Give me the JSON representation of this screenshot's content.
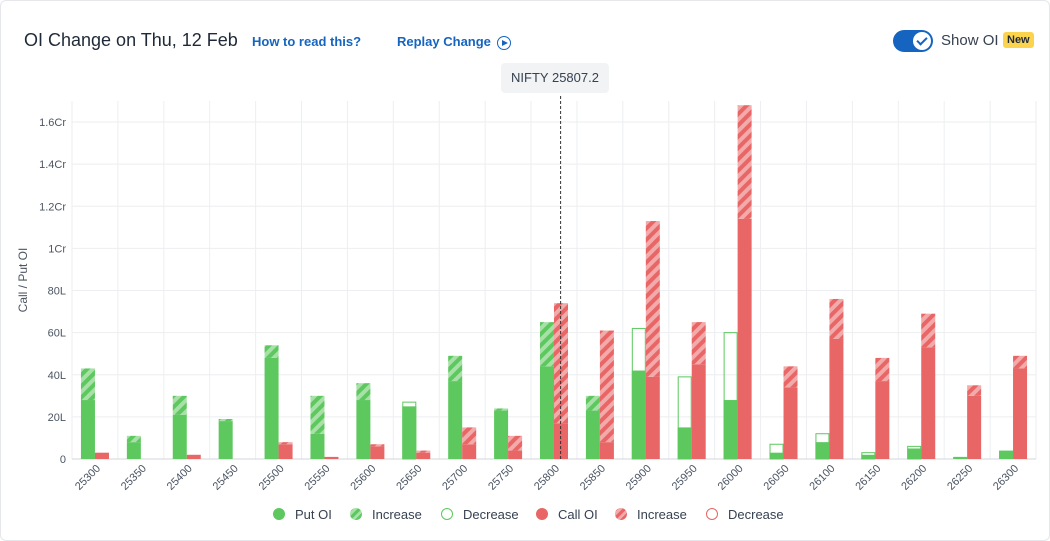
{
  "header": {
    "title": "OI Change on Thu, 12 Feb",
    "how_to_read": "How to read this?",
    "replay": "Replay Change",
    "show_oi_label": "Show OI",
    "new_badge": "New"
  },
  "spot_label": "NIFTY 25807.2",
  "colors": {
    "put": "#5cc85e",
    "call": "#e86666",
    "put_light": "#a8e0a8",
    "call_light": "#f2aaaa",
    "spot_line": "#333333"
  },
  "legend": [
    {
      "label": "Put OI",
      "kind": "put-solid"
    },
    {
      "label": "Increase",
      "kind": "put-hatch"
    },
    {
      "label": "Decrease",
      "kind": "put-outline"
    },
    {
      "label": "Call OI",
      "kind": "call-solid"
    },
    {
      "label": "Increase",
      "kind": "call-hatch"
    },
    {
      "label": "Decrease",
      "kind": "call-outline"
    }
  ],
  "chart_data": {
    "type": "bar",
    "ylabel": "Call / Put OI",
    "ylim": [
      0,
      1.7
    ],
    "y_unit": "Cr",
    "yticks": [
      {
        "value": 0,
        "label": "0"
      },
      {
        "value": 0.2,
        "label": "20L"
      },
      {
        "value": 0.4,
        "label": "40L"
      },
      {
        "value": 0.6,
        "label": "60L"
      },
      {
        "value": 0.8,
        "label": "80L"
      },
      {
        "value": 1.0,
        "label": "1Cr"
      },
      {
        "value": 1.2,
        "label": "1.2Cr"
      },
      {
        "value": 1.4,
        "label": "1.4Cr"
      },
      {
        "value": 1.6,
        "label": "1.6Cr"
      }
    ],
    "spot": 25807.2,
    "categories": [
      "25300",
      "25350",
      "25400",
      "25450",
      "25500",
      "25550",
      "25600",
      "25650",
      "25700",
      "25750",
      "25800",
      "25850",
      "25900",
      "25950",
      "26000",
      "26050",
      "26100",
      "26150",
      "26200",
      "26250",
      "26300"
    ],
    "series": [
      {
        "name": "Put OI",
        "values": [
          0.28,
          0.08,
          0.21,
          0.18,
          0.48,
          0.12,
          0.28,
          0.25,
          0.37,
          0.23,
          0.44,
          0.23,
          0.42,
          0.15,
          0.28,
          0.03,
          0.08,
          0.02,
          0.05,
          0.01,
          0.04
        ]
      },
      {
        "name": "Put Increase",
        "values": [
          0.15,
          0.03,
          0.09,
          0.01,
          0.06,
          0.18,
          0.08,
          0,
          0.12,
          0.01,
          0.21,
          0.07,
          0,
          0,
          0,
          0,
          0,
          0,
          0,
          0,
          0
        ]
      },
      {
        "name": "Put Decrease",
        "values": [
          0,
          0,
          0,
          0,
          0,
          0,
          0,
          0.02,
          0,
          0,
          0,
          0,
          0.2,
          0.24,
          0.32,
          0.04,
          0.04,
          0.01,
          0.01,
          0,
          0
        ]
      },
      {
        "name": "Call OI",
        "values": [
          0.03,
          0,
          0.02,
          0,
          0.07,
          0.01,
          0.06,
          0.03,
          0.07,
          0.04,
          0.17,
          0.08,
          0.39,
          0.45,
          1.14,
          0.34,
          0.57,
          0.37,
          0.53,
          0.3,
          0.43
        ]
      },
      {
        "name": "Call Increase",
        "values": [
          0,
          0,
          0,
          0,
          0.01,
          0,
          0.01,
          0.01,
          0.08,
          0.07,
          0.57,
          0.53,
          0.74,
          0.2,
          0.54,
          0.1,
          0.19,
          0.11,
          0.16,
          0.05,
          0.06
        ]
      },
      {
        "name": "Call Decrease",
        "values": [
          0,
          0,
          0,
          0,
          0,
          0,
          0,
          0,
          0,
          0,
          0,
          0,
          0,
          0,
          0,
          0,
          0,
          0,
          0,
          0,
          0
        ]
      }
    ],
    "grid": true
  }
}
